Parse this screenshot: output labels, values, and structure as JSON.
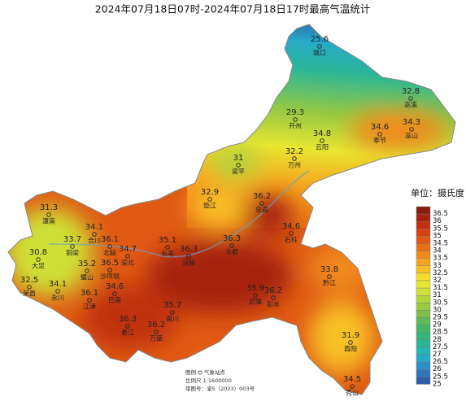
{
  "title": "2024年07月18日07时-2024年07月18日17时最高气温统计",
  "stations": [
    {
      "name": "城口",
      "value": 25.6
    },
    {
      "name": "巫溪",
      "value": 32.8
    },
    {
      "name": "开州",
      "value": 29.3
    },
    {
      "name": "云阳",
      "value": 34.8
    },
    {
      "name": "奉节",
      "value": 34.6
    },
    {
      "name": "巫山",
      "value": 34.3
    },
    {
      "name": "梁平",
      "value": 31
    },
    {
      "name": "万州",
      "value": 32.2
    },
    {
      "name": "垫江",
      "value": 32.9
    },
    {
      "name": "忠县",
      "value": 36.2
    },
    {
      "name": "潼南",
      "value": 31.3
    },
    {
      "name": "合川",
      "value": 34.1
    },
    {
      "name": "石柱",
      "value": 34.6
    },
    {
      "name": "铜梁",
      "value": 33.7
    },
    {
      "name": "北碚",
      "value": 36.1
    },
    {
      "name": "渝北",
      "value": 34.7
    },
    {
      "name": "长寿",
      "value": 35.1
    },
    {
      "name": "涪陵",
      "value": 36.3
    },
    {
      "name": "丰都",
      "value": 36.3
    },
    {
      "name": "大足",
      "value": 30.8
    },
    {
      "name": "璧山",
      "value": 35.2
    },
    {
      "name": "沙坪坝",
      "value": 36.5
    },
    {
      "name": "黔江",
      "value": 33.8
    },
    {
      "name": "荣昌",
      "value": 32.5
    },
    {
      "name": "永川",
      "value": 34.1
    },
    {
      "name": "巴南",
      "value": 34.6
    },
    {
      "name": "江津",
      "value": 36.1
    },
    {
      "name": "武隆",
      "value": 35.9
    },
    {
      "name": "彭水",
      "value": 36.2
    },
    {
      "name": "南川",
      "value": 35.7
    },
    {
      "name": "綦江",
      "value": 36.3
    },
    {
      "name": "万盛",
      "value": 36.2
    },
    {
      "name": "酉阳",
      "value": 31.9
    },
    {
      "name": "秀山",
      "value": 34.5
    }
  ],
  "legend": {
    "title": "单位：摄氏度",
    "entries": [
      {
        "value": 36.5,
        "color": "#8b1a0e"
      },
      {
        "value": 36,
        "color": "#a6200f"
      },
      {
        "value": 35.5,
        "color": "#c0300f"
      },
      {
        "value": 35,
        "color": "#d44212"
      },
      {
        "value": 34.5,
        "color": "#e05a14"
      },
      {
        "value": 34,
        "color": "#e96f17"
      },
      {
        "value": 33.5,
        "color": "#f08a1b"
      },
      {
        "value": 33,
        "color": "#f5a51f"
      },
      {
        "value": 32.5,
        "color": "#f8c125"
      },
      {
        "value": 32,
        "color": "#f7dc2b"
      },
      {
        "value": 31.5,
        "color": "#e8e631"
      },
      {
        "value": 31,
        "color": "#cfe036"
      },
      {
        "value": 30.5,
        "color": "#b2d43c"
      },
      {
        "value": 30,
        "color": "#97c943"
      },
      {
        "value": 29.5,
        "color": "#7fc04b"
      },
      {
        "value": 29,
        "color": "#62b957"
      },
      {
        "value": 28.5,
        "color": "#47b566"
      },
      {
        "value": 28,
        "color": "#35b57c"
      },
      {
        "value": 27.5,
        "color": "#2ab697"
      },
      {
        "value": 27,
        "color": "#26b5b2"
      },
      {
        "value": 26.5,
        "color": "#27a9c8"
      },
      {
        "value": 26,
        "color": "#2a90c6"
      },
      {
        "value": 25.5,
        "color": "#2d77b7"
      },
      {
        "value": 25,
        "color": "#305ea4"
      }
    ]
  },
  "footnote": {
    "legend_label": "图例",
    "station_label": "气象站点",
    "scale": "比例尺 1:1600000",
    "approval": "审图号：渝S（2023）003号"
  }
}
